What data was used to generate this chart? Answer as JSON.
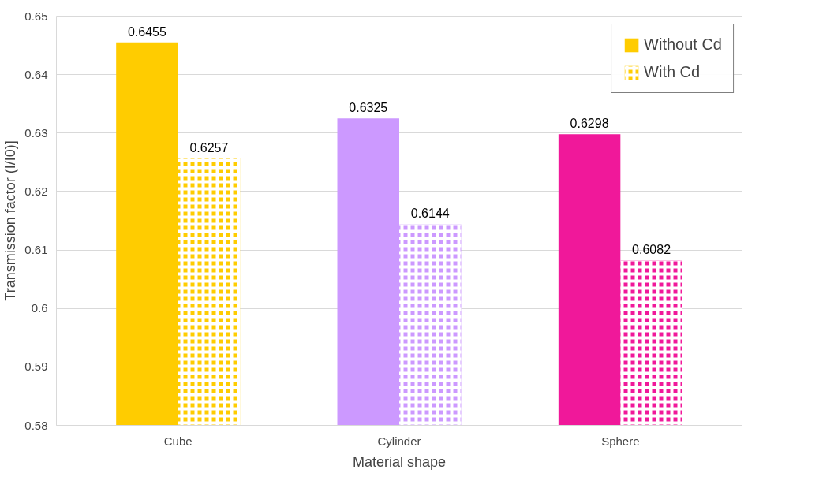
{
  "chart_data": {
    "type": "bar",
    "xlabel": "Material shape",
    "ylabel": "Transmission factor (I/I0)]",
    "categories": [
      "Cube",
      "Cylinder",
      "Sphere"
    ],
    "series": [
      {
        "name": "Without Cd",
        "colors": [
          "#ffcc00",
          "#cc99ff",
          "#f0189a"
        ],
        "values": [
          0.6455,
          0.6325,
          0.6298
        ]
      },
      {
        "name": "With Cd",
        "colors": [
          "#ffcc00",
          "#cc99ff",
          "#f0189a"
        ],
        "values": [
          0.6257,
          0.6144,
          0.6082
        ]
      }
    ],
    "ylim": [
      0.58,
      0.65
    ],
    "yticks": [
      0.58,
      0.59,
      0.6,
      0.61,
      0.62,
      0.63,
      0.64,
      0.65
    ],
    "grid": "y",
    "legend": "top right",
    "data_labels": true
  }
}
